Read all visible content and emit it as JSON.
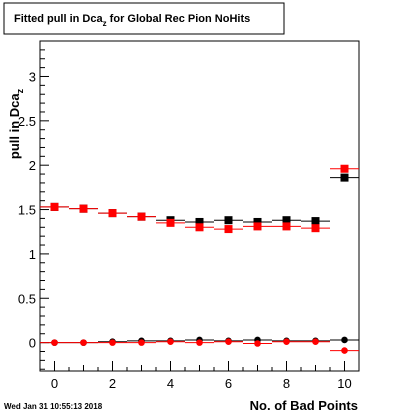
{
  "chart_data": {
    "type": "scatter",
    "title": "Fitted pull in Dca",
    "title_subscript": "z",
    "title_suffix": " for Global Rec Pion NoHits",
    "xlabel": "No. of Bad Points",
    "ylabel": "pull in Dca",
    "ylabel_subscript": "z",
    "xlim": [
      -0.5,
      10.5
    ],
    "ylim": [
      -0.32,
      3.4
    ],
    "x_ticks": [
      0,
      2,
      4,
      6,
      8,
      10
    ],
    "y_ticks": [
      0,
      0.5,
      1,
      1.5,
      2,
      2.5,
      3
    ],
    "x_tick_labels": [
      "0",
      "2",
      "4",
      "6",
      "8",
      "10"
    ],
    "y_tick_labels": [
      "0",
      "0.5",
      "1",
      "1.5",
      "2",
      "2.5",
      "3"
    ],
    "grid": false,
    "series": [
      {
        "marker": "square",
        "color": "#000000",
        "x": [
          0,
          1,
          2,
          3,
          4,
          5,
          6,
          7,
          8,
          9,
          10
        ],
        "y": [
          1.53,
          1.51,
          1.46,
          1.42,
          1.38,
          1.36,
          1.38,
          1.36,
          1.38,
          1.37,
          1.86
        ]
      },
      {
        "marker": "square",
        "color": "#ff0000",
        "x": [
          0,
          1,
          2,
          3,
          4,
          5,
          6,
          7,
          8,
          9,
          10
        ],
        "y": [
          1.53,
          1.51,
          1.46,
          1.42,
          1.35,
          1.3,
          1.28,
          1.31,
          1.31,
          1.29,
          1.96
        ]
      },
      {
        "marker": "circle",
        "color": "#000000",
        "x": [
          0,
          1,
          2,
          3,
          4,
          5,
          6,
          7,
          8,
          9,
          10
        ],
        "y": [
          0.0,
          0.0,
          0.01,
          0.02,
          0.02,
          0.03,
          0.02,
          0.03,
          0.02,
          0.02,
          0.03
        ]
      },
      {
        "marker": "circle",
        "color": "#ff0000",
        "x": [
          0,
          1,
          2,
          3,
          4,
          5,
          6,
          7,
          8,
          9,
          10
        ],
        "y": [
          0.0,
          0.0,
          0.0,
          0.0,
          0.01,
          0.0,
          0.01,
          -0.01,
          0.01,
          0.01,
          -0.09
        ]
      }
    ]
  },
  "timestamp": "Wed Jan 31 10:55:13 2018"
}
